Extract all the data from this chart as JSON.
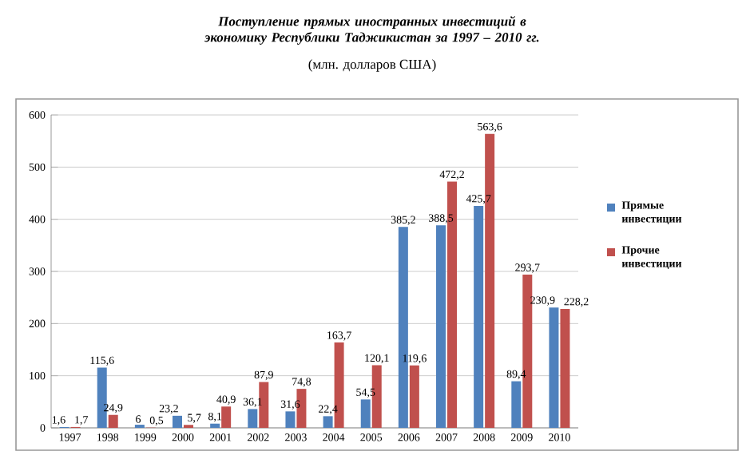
{
  "chart_data": {
    "type": "bar",
    "title": "Поступление прямых иностранных инвестиций в экономику Республики Таджикистан за 1997 – 2010 гг.",
    "subtitle": "(млн. долларов США)",
    "categories": [
      "1997",
      "1998",
      "1999",
      "2000",
      "2001",
      "2002",
      "2003",
      "2004",
      "2005",
      "2006",
      "2007",
      "2008",
      "2009",
      "2010"
    ],
    "series": [
      {
        "name": "Прямые инвестиции",
        "color": "#4f81bd",
        "values": [
          1.6,
          115.6,
          6,
          23.2,
          8.1,
          36.1,
          31.6,
          22.4,
          54.5,
          385.2,
          388.5,
          425.7,
          89.4,
          230.9
        ],
        "value_labels": [
          "1,6",
          "115,6",
          "6",
          "23,2",
          "8,1",
          "36,1",
          "31,6",
          "22,4",
          "54,5",
          "385,2",
          "388,5",
          "425,7",
          "89,4",
          "230,9"
        ]
      },
      {
        "name": "Прочие инвестиции",
        "color": "#c0504d",
        "values": [
          1.7,
          24.9,
          0.5,
          5.7,
          40.9,
          87.9,
          74.8,
          163.7,
          120.1,
          119.6,
          472.2,
          563.6,
          293.7,
          228.2
        ],
        "value_labels": [
          "1,7",
          "24,9",
          "0,5",
          "5,7",
          "40,9",
          "87,9",
          "74,8",
          "163,7",
          "120,1",
          "119,6",
          "472,2",
          "563,6",
          "293,7",
          "228,2"
        ]
      }
    ],
    "ylim": [
      0,
      600
    ],
    "yticks": [
      0,
      100,
      200,
      300,
      400,
      500,
      600
    ],
    "grid": "y",
    "legend": "right"
  }
}
